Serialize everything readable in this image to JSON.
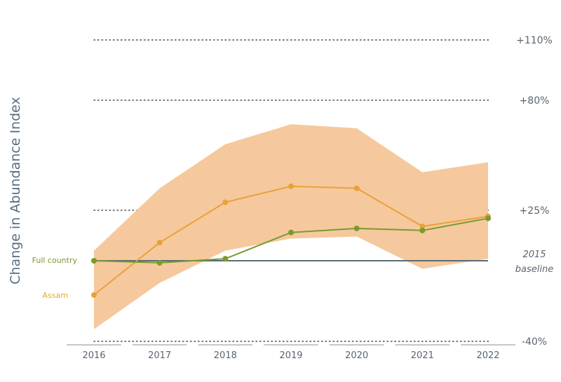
{
  "chart_data": {
    "type": "line",
    "ylabel": "Change in Abundance Index",
    "x": [
      2016,
      2017,
      2018,
      2019,
      2020,
      2021,
      2022
    ],
    "x_tick_labels": [
      "2016",
      "2017",
      "2018",
      "2019",
      "2020",
      "2021",
      "2022"
    ],
    "ylim": [
      -40,
      120
    ],
    "y_ticks": [
      110,
      80,
      25,
      -40
    ],
    "y_tick_labels": [
      "+110%",
      "+80%",
      "+25%",
      "-40%"
    ],
    "grid": "dotted lines at y-ticks",
    "baseline": {
      "value": 0,
      "label_line1": "2015",
      "label_line2": "baseline"
    },
    "series": [
      {
        "name": "Full country",
        "color": "#7a9a2e",
        "values": [
          0,
          -1,
          1,
          14,
          16,
          15,
          21
        ]
      },
      {
        "name": "Assam",
        "color": "#e8a23a",
        "values": [
          -17,
          9,
          29,
          37,
          36,
          17,
          22
        ],
        "band_upper": [
          5,
          36,
          58,
          68,
          66,
          44,
          49
        ],
        "band_lower": [
          -34,
          -11,
          5,
          11,
          12,
          -4,
          1
        ],
        "band_color": "#f5c99d"
      }
    ]
  }
}
